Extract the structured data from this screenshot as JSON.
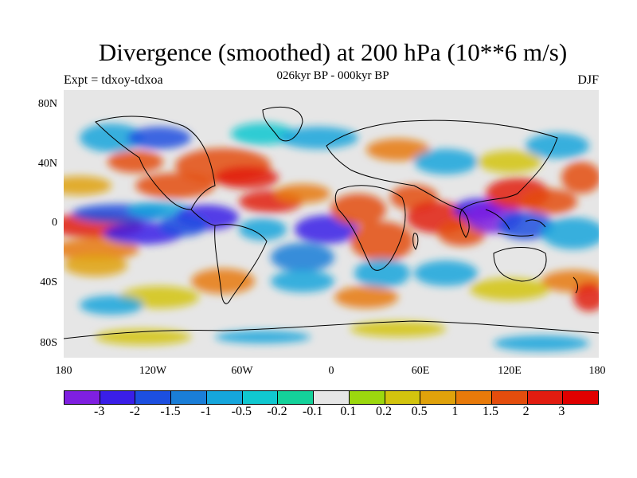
{
  "title": "Divergence (smoothed) at 200 hPa (10**6 m/s)",
  "subtitle": "026kyr BP - 000kyr BP",
  "left_label": "Expt = tdxoy-tdxoa",
  "right_label": "DJF",
  "y_ticks": [
    "80N",
    "40N",
    "0",
    "40S",
    "80S"
  ],
  "x_ticks": [
    "180",
    "120W",
    "60W",
    "0",
    "60E",
    "120E",
    "180"
  ],
  "colorbar": {
    "labels": [
      "-3",
      "-2",
      "-1.5",
      "-1",
      "-0.5",
      "-0.2",
      "-0.1",
      "0.1",
      "0.2",
      "0.5",
      "1",
      "1.5",
      "2",
      "3"
    ],
    "colors": [
      "#7f1fe0",
      "#3a1ee8",
      "#1c4fe0",
      "#1a7ed8",
      "#15a6dc",
      "#10c8d0",
      "#14d29a",
      "#e6e6e6",
      "#9cd80e",
      "#d3c40e",
      "#e0a20b",
      "#e87a0a",
      "#e44d0d",
      "#e21c10",
      "#e00000"
    ]
  },
  "map_background": "#e6e6e6"
}
